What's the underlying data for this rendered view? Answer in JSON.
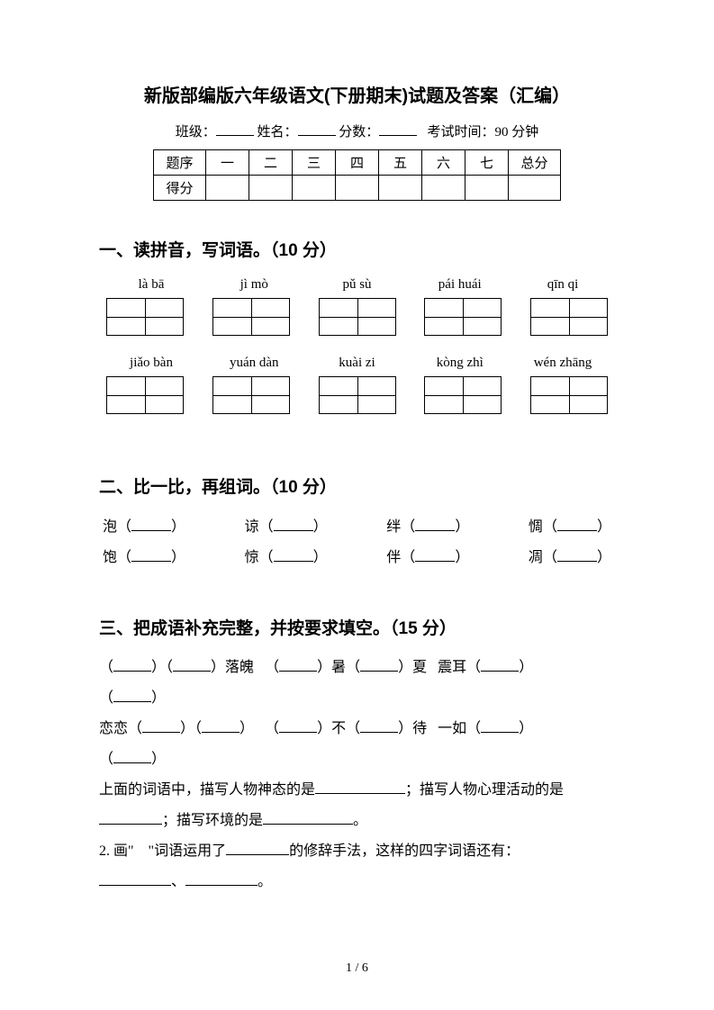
{
  "title": "新版部编版六年级语文(下册期末)试题及答案（汇编）",
  "info": {
    "class_label": "班级：",
    "name_label": "姓名：",
    "score_label": "分数：",
    "time_label": "考试时间：90 分钟"
  },
  "score_table": {
    "header": [
      "题序",
      "一",
      "二",
      "三",
      "四",
      "五",
      "六",
      "七",
      "总分"
    ],
    "row2_label": "得分"
  },
  "section1": {
    "title": "一、读拼音，写词语。（10 分）",
    "row1_pinyin": [
      "là   bā",
      "jì mò",
      "pǔ sù",
      "pái huái",
      "qīn qi"
    ],
    "row2_pinyin": [
      "jiǎo bàn",
      "yuán dàn",
      "kuài zi",
      "kòng zhì",
      "wén zhāng"
    ]
  },
  "section2": {
    "title": "二、比一比，再组词。（10 分）",
    "row1": [
      "泡",
      "谅",
      "绊",
      "惆"
    ],
    "row2": [
      "饱",
      "惊",
      "伴",
      "凋"
    ]
  },
  "section3": {
    "title": "三、把成语补充完整，并按要求填空。（15 分）",
    "line1_a": "落魄",
    "line1_b": "暑",
    "line1_c": "夏",
    "line1_d": "震耳",
    "line2_a": "恋恋",
    "line2_b": "不",
    "line2_c": "待",
    "line2_d": "一如",
    "desc1_a": "上面的词语中，描写人物神态的是",
    "desc1_b": "；描写人物心理活动的是",
    "desc2_a": "；描写环境的是",
    "desc2_b": "。",
    "q2_a": "2. 画\"",
    "q2_b": "\"词语运用了",
    "q2_c": "的修辞手法，这样的四字词语还有：",
    "q2_sep": "、",
    "q2_end": "。"
  },
  "page_num": "1 / 6"
}
